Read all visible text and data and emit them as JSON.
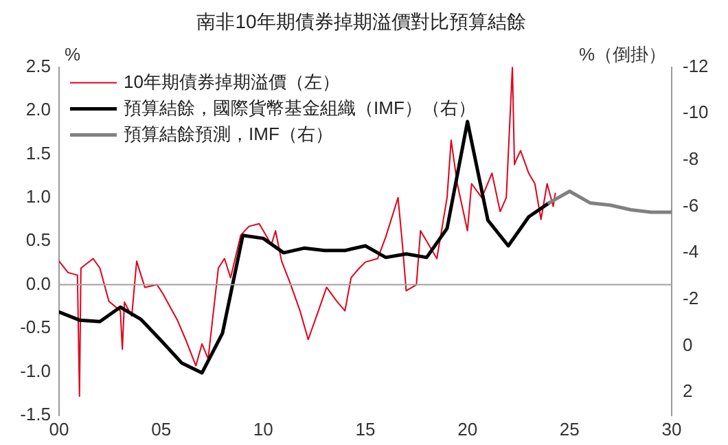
{
  "chart_data": {
    "type": "line",
    "title": "南非10年期債券掉期溢價對比預算結餘",
    "ylabel": "%",
    "y2label": "%（倒掛）",
    "xlim": [
      2000,
      2030
    ],
    "xticks": [
      {
        "value": 2000,
        "label": "00"
      },
      {
        "value": 2005,
        "label": "05"
      },
      {
        "value": 2010,
        "label": "10"
      },
      {
        "value": 2015,
        "label": "15"
      },
      {
        "value": 2020,
        "label": "20"
      },
      {
        "value": 2025,
        "label": "25"
      },
      {
        "value": 2030,
        "label": "30"
      }
    ],
    "ylim": [
      -1.5,
      2.5
    ],
    "yticks": [
      -1.5,
      {
        "value": -1,
        "label": "-1.0"
      },
      -0.5,
      {
        "value": 0,
        "label": "0.0"
      },
      0.5,
      {
        "value": 1,
        "label": "1.0"
      },
      1.5,
      {
        "value": 2,
        "label": "2.0"
      },
      2.5
    ],
    "y2lim": [
      3,
      -12
    ],
    "y2ticks": [
      -12,
      -10,
      -8,
      -6,
      -4,
      -2,
      0,
      2
    ],
    "grid": false,
    "legend": "top left",
    "marker": "none",
    "line_style": "solid",
    "ref_lines": [
      {
        "axis": "y",
        "value": 0,
        "color": "#a0a0a0"
      }
    ],
    "series": [
      {
        "name": "10年期債券掉期溢價（左）",
        "color": "#e0001b",
        "x": [
          2000.0,
          2000.44,
          2000.9,
          2001.0,
          2001.07,
          2001.67,
          2002.0,
          2002.44,
          2003.0,
          2003.1,
          2003.2,
          2003.56,
          2003.8,
          2004.2,
          2004.8,
          2005.1,
          2005.8,
          2006.2,
          2006.7,
          2007.0,
          2007.3,
          2007.8,
          2008.1,
          2008.4,
          2008.9,
          2009.3,
          2009.8,
          2010.4,
          2010.6,
          2010.9,
          2011.3,
          2011.8,
          2012.2,
          2012.7,
          2013.1,
          2013.6,
          2014.0,
          2014.3,
          2014.7,
          2015.0,
          2015.6,
          2016.0,
          2016.6,
          2016.8,
          2017.0,
          2017.5,
          2017.7,
          2018.1,
          2018.5,
          2018.8,
          2019.0,
          2019.2,
          2019.5,
          2020.0,
          2020.2,
          2020.7,
          2021.2,
          2021.6,
          2021.9,
          2022.2,
          2022.3,
          2022.4,
          2022.6,
          2023.0,
          2023.3,
          2023.6,
          2023.9,
          2024.2,
          2024.3
        ],
        "values": [
          0.27,
          0.14,
          0.11,
          -1.28,
          0.19,
          0.3,
          0.19,
          -0.19,
          -0.3,
          -0.74,
          -0.2,
          -0.36,
          0.27,
          -0.03,
          0.0,
          -0.11,
          -0.41,
          -0.63,
          -0.93,
          -0.68,
          -0.85,
          0.19,
          0.3,
          0.08,
          0.57,
          0.67,
          0.7,
          0.46,
          0.62,
          0.27,
          0.03,
          -0.3,
          -0.63,
          -0.3,
          -0.03,
          -0.19,
          -0.3,
          0.08,
          0.19,
          0.26,
          0.3,
          0.55,
          1.0,
          0.5,
          -0.07,
          0.0,
          0.62,
          0.46,
          0.3,
          0.72,
          1.0,
          1.66,
          1.16,
          0.62,
          1.16,
          1.0,
          1.28,
          0.84,
          1.0,
          2.5,
          1.38,
          1.44,
          1.54,
          1.28,
          1.16,
          0.75,
          1.16,
          0.9,
          1.05
        ]
      },
      {
        "name": "預算結餘，國際貨幣基金組織（IMF）（右）",
        "color": "#000000",
        "axis": "y2",
        "x": [
          2000,
          2001,
          2002,
          2003,
          2004,
          2005,
          2006,
          2007,
          2008,
          2009,
          2010,
          2011,
          2012,
          2013,
          2014,
          2015,
          2016,
          2017,
          2018,
          2019,
          2020,
          2021,
          2022,
          2023,
          2024
        ],
        "values": [
          -1.45,
          -1.1,
          -1.04,
          -1.66,
          -1.14,
          -0.22,
          0.74,
          1.17,
          -0.53,
          -4.75,
          -4.62,
          -4.0,
          -4.2,
          -4.1,
          -4.1,
          -4.3,
          -3.8,
          -3.95,
          -3.8,
          -5.05,
          -9.65,
          -5.4,
          -4.3,
          -5.55,
          -6.15
        ]
      },
      {
        "name": "預算結餘預測，IMF（右）",
        "color": "#808080",
        "axis": "y2",
        "x": [
          2024,
          2025,
          2026,
          2027,
          2028,
          2029,
          2030
        ],
        "values": [
          -6.15,
          -6.65,
          -6.15,
          -6.05,
          -5.85,
          -5.75,
          -5.75
        ]
      }
    ]
  }
}
